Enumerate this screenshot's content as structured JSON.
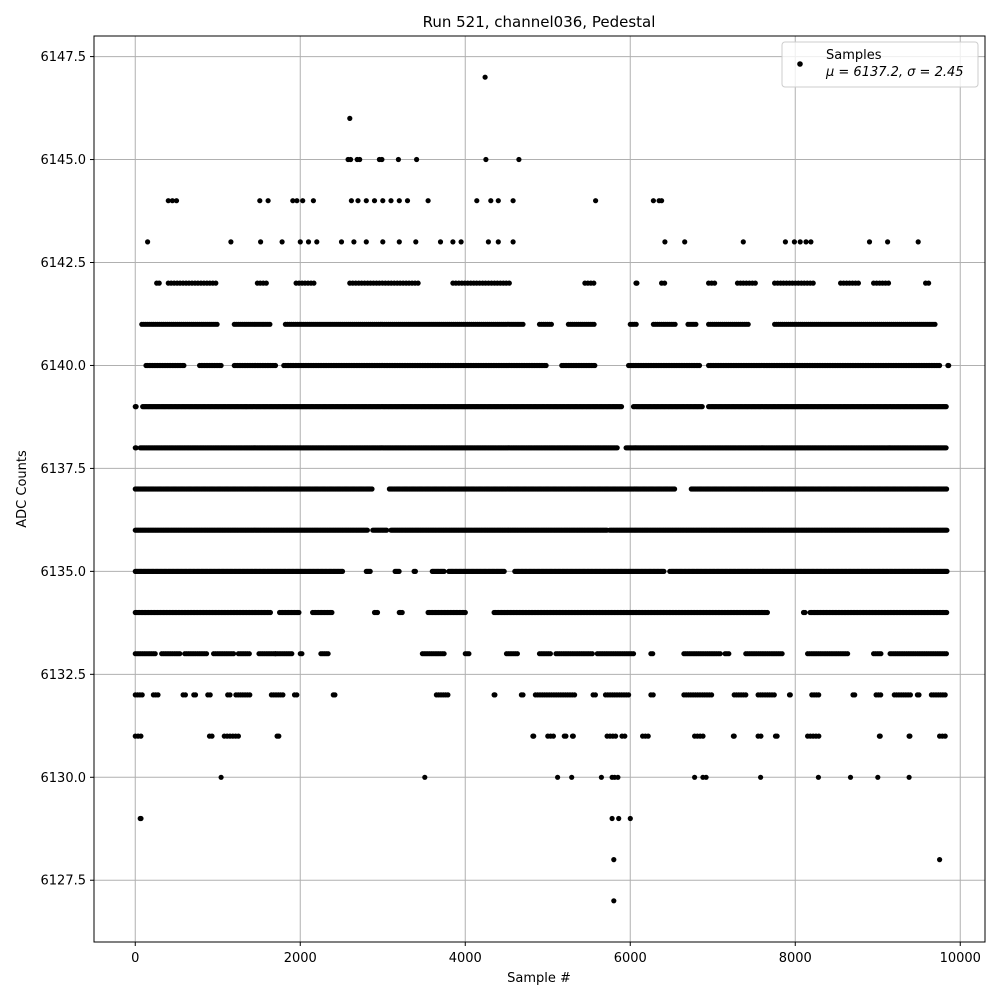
{
  "chart_data": {
    "type": "scatter",
    "title": "Run 521, channel036, Pedestal",
    "xlabel": "Sample #",
    "ylabel": "ADC Counts",
    "xlim": [
      -500,
      10300
    ],
    "ylim": [
      6126.0,
      6148.0
    ],
    "xticks": [
      0,
      2000,
      4000,
      6000,
      8000,
      10000
    ],
    "xtick_labels": [
      "0",
      "2000",
      "4000",
      "6000",
      "8000",
      "10000"
    ],
    "yticks": [
      6127.5,
      6130.0,
      6132.5,
      6135.0,
      6137.5,
      6140.0,
      6142.5,
      6145.0,
      6147.5
    ],
    "ytick_labels": [
      "6127.5",
      "6130.0",
      "6132.5",
      "6135.0",
      "6137.5",
      "6140.0",
      "6142.5",
      "6145.0",
      "6147.5"
    ],
    "grid": true,
    "marker_color": "#000000",
    "legend": {
      "placement": "top-right",
      "label": "Samples",
      "stats": "μ = 6137.2, σ = 2.45"
    },
    "series": [
      {
        "name": "Samples",
        "mean": 6137.2,
        "std": 2.45,
        "points": [
          [
            4240,
            6147
          ],
          [
            2600,
            6146
          ],
          [
            5800,
            6127
          ],
          [
            9750,
            6128
          ],
          [
            5800,
            6128
          ],
          [
            60,
            6129
          ],
          [
            70,
            6129
          ],
          [
            5780,
            6129
          ],
          [
            5860,
            6129
          ],
          [
            6000,
            6129
          ],
          [
            1040,
            6130
          ],
          [
            3510,
            6130
          ],
          [
            5120,
            6130
          ],
          [
            5290,
            6130
          ],
          [
            5650,
            6130
          ],
          [
            5780,
            6130
          ],
          [
            5810,
            6130
          ],
          [
            5850,
            6130
          ],
          [
            6780,
            6130
          ],
          [
            6880,
            6130
          ],
          [
            6920,
            6130
          ],
          [
            7580,
            6130
          ],
          [
            8280,
            6130
          ],
          [
            8670,
            6130
          ],
          [
            9000,
            6130
          ],
          [
            9380,
            6130
          ],
          [
            2580,
            6145
          ],
          [
            2610,
            6145
          ],
          [
            2690,
            6145
          ],
          [
            2720,
            6145
          ],
          [
            2960,
            6145
          ],
          [
            2990,
            6145
          ],
          [
            3190,
            6145
          ],
          [
            3410,
            6145
          ],
          [
            4250,
            6145
          ],
          [
            4650,
            6145
          ],
          [
            400,
            6144
          ],
          [
            450,
            6144
          ],
          [
            500,
            6144
          ],
          [
            1510,
            6144
          ],
          [
            1610,
            6144
          ],
          [
            1910,
            6144
          ],
          [
            1960,
            6144
          ],
          [
            2030,
            6144
          ],
          [
            2160,
            6144
          ],
          [
            2620,
            6144
          ],
          [
            2700,
            6144
          ],
          [
            2800,
            6144
          ],
          [
            2900,
            6144
          ],
          [
            3000,
            6144
          ],
          [
            3100,
            6144
          ],
          [
            3200,
            6144
          ],
          [
            3300,
            6144
          ],
          [
            3550,
            6144
          ],
          [
            4140,
            6144
          ],
          [
            4310,
            6144
          ],
          [
            4400,
            6144
          ],
          [
            4580,
            6144
          ],
          [
            5580,
            6144
          ],
          [
            6280,
            6144
          ],
          [
            6350,
            6144
          ],
          [
            6380,
            6144
          ],
          [
            150,
            6143
          ],
          [
            1160,
            6143
          ],
          [
            1520,
            6143
          ],
          [
            1780,
            6143
          ],
          [
            2000,
            6143
          ],
          [
            2100,
            6143
          ],
          [
            2200,
            6143
          ],
          [
            2500,
            6143
          ],
          [
            2650,
            6143
          ],
          [
            2800,
            6143
          ],
          [
            3000,
            6143
          ],
          [
            3200,
            6143
          ],
          [
            3400,
            6143
          ],
          [
            3700,
            6143
          ],
          [
            3850,
            6143
          ],
          [
            3950,
            6143
          ],
          [
            4280,
            6143
          ],
          [
            4400,
            6143
          ],
          [
            4580,
            6143
          ],
          [
            6420,
            6143
          ],
          [
            6660,
            6143
          ],
          [
            7370,
            6143
          ],
          [
            7880,
            6143
          ],
          [
            7990,
            6143
          ],
          [
            8060,
            6143
          ],
          [
            8130,
            6143
          ],
          [
            8190,
            6143
          ],
          [
            8900,
            6143
          ],
          [
            9120,
            6143
          ],
          [
            9490,
            6143
          ]
        ],
        "bands": [
          {
            "y": 6142,
            "segments": [
              [
                260,
                290
              ],
              [
                400,
                980
              ],
              [
                1480,
                1620
              ],
              [
                1950,
                2200
              ],
              [
                2600,
                3450
              ],
              [
                3850,
                4550
              ],
              [
                5450,
                5560
              ],
              [
                6070,
                6080
              ],
              [
                6380,
                6450
              ],
              [
                6950,
                7050
              ],
              [
                7300,
                7550
              ],
              [
                7750,
                8250
              ],
              [
                8550,
                8800
              ],
              [
                8950,
                9150
              ],
              [
                9580,
                9650
              ]
            ],
            "step": 36
          },
          {
            "y": 6141,
            "segments": [
              [
                80,
                1000
              ],
              [
                1200,
                1650
              ],
              [
                1820,
                4700
              ],
              [
                4900,
                5050
              ],
              [
                5250,
                5570
              ],
              [
                6000,
                6080
              ],
              [
                6280,
                6550
              ],
              [
                6700,
                6800
              ],
              [
                6950,
                7450
              ],
              [
                7750,
                9700
              ]
            ],
            "step": 24
          },
          {
            "y": 6140,
            "segments": [
              [
                130,
                600
              ],
              [
                780,
                1050
              ],
              [
                1200,
                1700
              ],
              [
                1800,
                4980
              ],
              [
                5170,
                5580
              ],
              [
                5980,
                6850
              ],
              [
                6950,
                9750
              ],
              [
                9850,
                9860
              ]
            ],
            "step": 20
          },
          {
            "y": 6139,
            "segments": [
              [
                0,
                10
              ],
              [
                90,
                1350
              ],
              [
                1350,
                5900
              ],
              [
                6040,
                6880
              ],
              [
                6950,
                9830
              ]
            ],
            "step": 16
          },
          {
            "y": 6138,
            "segments": [
              [
                0,
                10
              ],
              [
                60,
                5850
              ],
              [
                5950,
                9830
              ]
            ],
            "step": 14
          },
          {
            "y": 6137,
            "segments": [
              [
                0,
                2880
              ],
              [
                3080,
                6550
              ],
              [
                6740,
                9840
              ]
            ],
            "step": 14
          },
          {
            "y": 6136,
            "segments": [
              [
                0,
                2820
              ],
              [
                2880,
                3050
              ],
              [
                3100,
                5720
              ],
              [
                5750,
                9840
              ]
            ],
            "step": 14
          },
          {
            "y": 6135,
            "segments": [
              [
                0,
                2520
              ],
              [
                2800,
                2850
              ],
              [
                3150,
                3200
              ],
              [
                3380,
                3400
              ],
              [
                3600,
                3750
              ],
              [
                3800,
                4480
              ],
              [
                4600,
                6410
              ],
              [
                6480,
                9840
              ]
            ],
            "step": 16
          },
          {
            "y": 6134,
            "segments": [
              [
                0,
                1650
              ],
              [
                1750,
                2000
              ],
              [
                2150,
                2400
              ],
              [
                2900,
                2950
              ],
              [
                3200,
                3250
              ],
              [
                3550,
                4000
              ],
              [
                4350,
                7670
              ],
              [
                8100,
                8120
              ],
              [
                8180,
                9840
              ]
            ],
            "step": 18
          },
          {
            "y": 6133,
            "segments": [
              [
                0,
                250
              ],
              [
                320,
                550
              ],
              [
                600,
                870
              ],
              [
                950,
                1200
              ],
              [
                1250,
                1400
              ],
              [
                1500,
                1700
              ],
              [
                1700,
                1900
              ],
              [
                2000,
                2020
              ],
              [
                2250,
                2350
              ],
              [
                3480,
                3750
              ],
              [
                4000,
                4060
              ],
              [
                4500,
                4650
              ],
              [
                4900,
                5050
              ],
              [
                5100,
                5560
              ],
              [
                5600,
                6050
              ],
              [
                6250,
                6280
              ],
              [
                6650,
                7100
              ],
              [
                7150,
                7200
              ],
              [
                7400,
                7850
              ],
              [
                8150,
                8650
              ],
              [
                8950,
                9050
              ],
              [
                9150,
                9840
              ]
            ],
            "step": 22
          },
          {
            "y": 6132,
            "segments": [
              [
                0,
                100
              ],
              [
                220,
                280
              ],
              [
                580,
                620
              ],
              [
                710,
                730
              ],
              [
                880,
                920
              ],
              [
                1120,
                1150
              ],
              [
                1220,
                1400
              ],
              [
                1650,
                1800
              ],
              [
                1930,
                1960
              ],
              [
                2400,
                2420
              ],
              [
                3650,
                3800
              ],
              [
                4350,
                4360
              ],
              [
                4680,
                4700
              ],
              [
                4850,
                5350
              ],
              [
                5550,
                5600
              ],
              [
                5700,
                6000
              ],
              [
                6250,
                6300
              ],
              [
                6650,
                7000
              ],
              [
                7260,
                7400
              ],
              [
                7550,
                7760
              ],
              [
                7930,
                7940
              ],
              [
                8200,
                8300
              ],
              [
                8700,
                8720
              ],
              [
                8980,
                9050
              ],
              [
                9200,
                9400
              ],
              [
                9480,
                9500
              ],
              [
                9650,
                9820
              ]
            ],
            "step": 28
          },
          {
            "y": 6131,
            "segments": [
              [
                0,
                100
              ],
              [
                900,
                930
              ],
              [
                1080,
                1250
              ],
              [
                1720,
                1740
              ],
              [
                4820,
                4830
              ],
              [
                5000,
                5100
              ],
              [
                5200,
                5220
              ],
              [
                5300,
                5310
              ],
              [
                5720,
                5850
              ],
              [
                5900,
                5950
              ],
              [
                6150,
                6250
              ],
              [
                6780,
                6900
              ],
              [
                7250,
                7260
              ],
              [
                7550,
                7600
              ],
              [
                7760,
                7780
              ],
              [
                8150,
                8300
              ],
              [
                9020,
                9030
              ],
              [
                9380,
                9390
              ],
              [
                9750,
                9830
              ]
            ],
            "step": 34
          }
        ]
      }
    ]
  }
}
